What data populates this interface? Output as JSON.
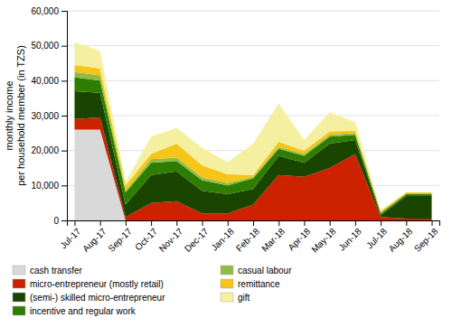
{
  "chart_data": {
    "type": "area",
    "stacked": true,
    "ylabel": "monthly income\nper household member (in TZS)",
    "categories": [
      "Jul-17",
      "Aug-17",
      "Sep-17",
      "Oct-17",
      "Nov-17",
      "Dec-17",
      "Jan-18",
      "Feb-18",
      "Mar-18",
      "Apr-18",
      "May-18",
      "Jun-18",
      "Jul-18",
      "Aug-18",
      "Sep-18"
    ],
    "series": [
      {
        "name": "cash transfer",
        "color": "#d9d9d9",
        "values": [
          26000,
          26000,
          0,
          0,
          0,
          0,
          0,
          0,
          0,
          0,
          0,
          0,
          0,
          0,
          0
        ]
      },
      {
        "name": "micro-entrepreneur (mostly retail)",
        "color": "#cc2200",
        "values": [
          3000,
          3500,
          1000,
          5000,
          5500,
          2000,
          2000,
          4500,
          13000,
          12500,
          15000,
          19000,
          1000,
          500,
          500
        ]
      },
      {
        "name": "(semi-) skilled micro-entrepreneur",
        "color": "#1a4500",
        "values": [
          8000,
          7000,
          3500,
          8000,
          8500,
          6500,
          5500,
          4500,
          5500,
          4000,
          7000,
          4000,
          500,
          6500,
          6500
        ]
      },
      {
        "name": "incentive and regular work",
        "color": "#2e7d00",
        "values": [
          4000,
          3500,
          3500,
          3500,
          3000,
          3000,
          2500,
          3000,
          2000,
          2000,
          2000,
          1500,
          500,
          500,
          500
        ]
      },
      {
        "name": "casual labour",
        "color": "#8fbc45",
        "values": [
          1500,
          1500,
          500,
          1000,
          1000,
          800,
          700,
          500,
          500,
          500,
          500,
          500,
          200,
          200,
          200
        ]
      },
      {
        "name": "remittance",
        "color": "#f5c518",
        "values": [
          2000,
          2000,
          1500,
          1500,
          4000,
          3500,
          2500,
          500,
          1500,
          1000,
          1000,
          700,
          500,
          300,
          300
        ]
      },
      {
        "name": "gift",
        "color": "#f5f0a0",
        "values": [
          6500,
          5000,
          1000,
          5000,
          4500,
          5000,
          3500,
          9000,
          11000,
          3000,
          5500,
          2500,
          0,
          0,
          0
        ]
      }
    ],
    "ylim": [
      0,
      60000
    ],
    "yticks": [
      0,
      {
        "value": 10000,
        "label": "10,000"
      },
      {
        "value": 20000,
        "label": "20,000"
      },
      {
        "value": 30000,
        "label": "30,000"
      },
      {
        "value": 40000,
        "label": "40,000"
      },
      {
        "value": 50000,
        "label": "50,000"
      },
      {
        "value": 60000,
        "label": "60,000"
      }
    ],
    "grid": true,
    "legend": "bottom"
  }
}
